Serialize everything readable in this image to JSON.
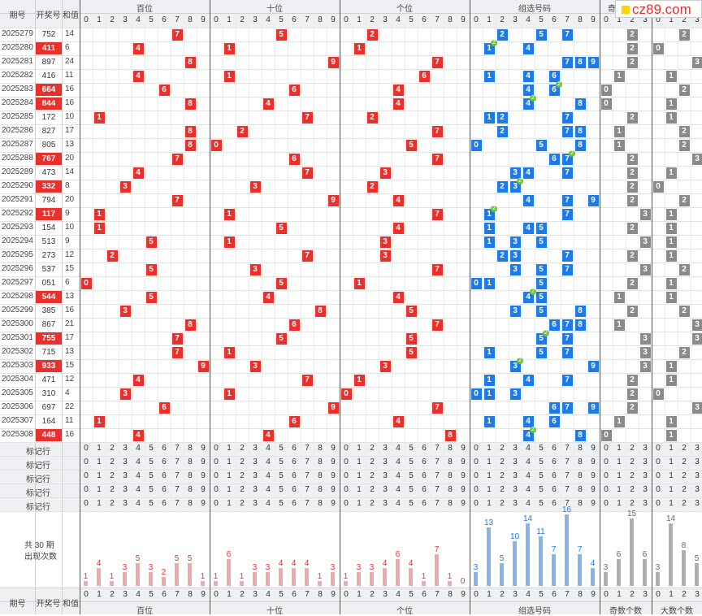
{
  "header": {
    "col_period": "期号",
    "col_number": "开奖号",
    "col_sum": "和值",
    "groups": [
      "百位",
      "十位",
      "个位",
      "组选号码",
      "奇数个数",
      "大数个数"
    ],
    "top_group_visible": [
      "百位",
      "十位",
      "个位",
      "组选号码",
      "奇"
    ]
  },
  "logo": {
    "text": "cz89.com",
    "mark_color": "#ffd400"
  },
  "digits": [
    "0",
    "1",
    "2",
    "3",
    "4",
    "5",
    "6",
    "7",
    "8",
    "9"
  ],
  "count_digits": [
    "0",
    "1",
    "2",
    "3"
  ],
  "rows": [
    {
      "period": "2025279",
      "number": "752",
      "sum": "14",
      "hl": false
    },
    {
      "period": "2025280",
      "number": "411",
      "sum": "6",
      "hl": true
    },
    {
      "period": "2025281",
      "number": "897",
      "sum": "24",
      "hl": false
    },
    {
      "period": "2025282",
      "number": "416",
      "sum": "11",
      "hl": false
    },
    {
      "period": "2025283",
      "number": "664",
      "sum": "16",
      "hl": true
    },
    {
      "period": "2025284",
      "number": "844",
      "sum": "16",
      "hl": true
    },
    {
      "period": "2025285",
      "number": "172",
      "sum": "10",
      "hl": false
    },
    {
      "period": "2025286",
      "number": "827",
      "sum": "17",
      "hl": false
    },
    {
      "period": "2025287",
      "number": "805",
      "sum": "13",
      "hl": false
    },
    {
      "period": "2025288",
      "number": "767",
      "sum": "20",
      "hl": true
    },
    {
      "period": "2025289",
      "number": "473",
      "sum": "14",
      "hl": false
    },
    {
      "period": "2025290",
      "number": "332",
      "sum": "8",
      "hl": true
    },
    {
      "period": "2025291",
      "number": "794",
      "sum": "20",
      "hl": false
    },
    {
      "period": "2025292",
      "number": "117",
      "sum": "9",
      "hl": true
    },
    {
      "period": "2025293",
      "number": "154",
      "sum": "10",
      "hl": false
    },
    {
      "period": "2025294",
      "number": "513",
      "sum": "9",
      "hl": false
    },
    {
      "period": "2025295",
      "number": "273",
      "sum": "12",
      "hl": false
    },
    {
      "period": "2025296",
      "number": "537",
      "sum": "15",
      "hl": false
    },
    {
      "period": "2025297",
      "number": "051",
      "sum": "6",
      "hl": false
    },
    {
      "period": "2025298",
      "number": "544",
      "sum": "13",
      "hl": true
    },
    {
      "period": "2025299",
      "number": "385",
      "sum": "16",
      "hl": false
    },
    {
      "period": "2025300",
      "number": "867",
      "sum": "21",
      "hl": false
    },
    {
      "period": "2025301",
      "number": "755",
      "sum": "17",
      "hl": true
    },
    {
      "period": "2025302",
      "number": "715",
      "sum": "13",
      "hl": false
    },
    {
      "period": "2025303",
      "number": "933",
      "sum": "15",
      "hl": true
    },
    {
      "period": "2025304",
      "number": "471",
      "sum": "12",
      "hl": false
    },
    {
      "period": "2025305",
      "number": "310",
      "sum": "4",
      "hl": false
    },
    {
      "period": "2025306",
      "number": "697",
      "sum": "22",
      "hl": false
    },
    {
      "period": "2025307",
      "number": "164",
      "sum": "11",
      "hl": false
    },
    {
      "period": "2025308",
      "number": "448",
      "sum": "16",
      "hl": true
    }
  ],
  "marker_rows": [
    "标记行",
    "标记行",
    "标记行",
    "标记行",
    "标记行"
  ],
  "stats_label_line1": "共 30 期",
  "stats_label_line2": "出现次数",
  "chart_data": {
    "type": "bar",
    "title": "",
    "period_count": 30,
    "series": [
      {
        "name": "百位",
        "categories": [
          "0",
          "1",
          "2",
          "3",
          "4",
          "5",
          "6",
          "7",
          "8",
          "9"
        ],
        "values": [
          1,
          4,
          1,
          3,
          5,
          3,
          2,
          5,
          5,
          1
        ]
      },
      {
        "name": "十位",
        "categories": [
          "0",
          "1",
          "2",
          "3",
          "4",
          "5",
          "6",
          "7",
          "8",
          "9"
        ],
        "values": [
          1,
          6,
          1,
          3,
          3,
          4,
          4,
          4,
          1,
          3
        ]
      },
      {
        "name": "个位",
        "categories": [
          "0",
          "1",
          "2",
          "3",
          "4",
          "5",
          "6",
          "7",
          "8",
          "9"
        ],
        "values": [
          1,
          3,
          3,
          4,
          6,
          4,
          1,
          7,
          1,
          0
        ]
      },
      {
        "name": "组选号码",
        "categories": [
          "0",
          "1",
          "2",
          "3",
          "4",
          "5",
          "6",
          "7",
          "8",
          "9"
        ],
        "values": [
          3,
          13,
          5,
          10,
          14,
          11,
          7,
          16,
          7,
          4
        ]
      },
      {
        "name": "奇数个数",
        "categories": [
          "0",
          "1",
          "2",
          "3"
        ],
        "values": [
          3,
          6,
          15,
          6
        ]
      },
      {
        "name": "大数个数",
        "categories": [
          "0",
          "1",
          "2",
          "3"
        ],
        "values": [
          3,
          14,
          8,
          5
        ]
      }
    ],
    "colors": {
      "pos": "#f4a7a4",
      "pos_label": "#e8302d",
      "group": "#86b4ee",
      "group_label": "#1e7ae6",
      "count": "#b0b0b0",
      "count_label": "#666666"
    }
  },
  "colors": {
    "red_ball": "#e8302d",
    "blue_ball": "#1e7ae6",
    "gray_ball": "#8a8a8a",
    "duplicate_mark": "#6ec23c",
    "header_bg": "#eef0f3",
    "grid_line": "#dddddd"
  }
}
